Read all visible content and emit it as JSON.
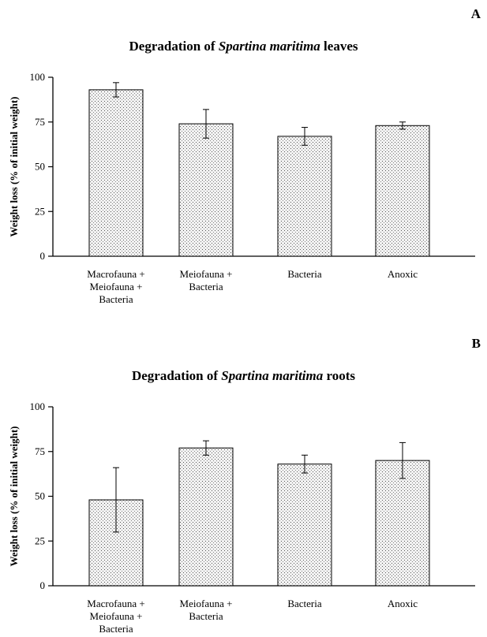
{
  "chart_data": [
    {
      "type": "bar",
      "panel_label": "A",
      "title_prefix": "Degradation of ",
      "title_italic": "Spartina maritima",
      "title_suffix": " leaves",
      "ylabel": "Weight loss (% of initial weight)",
      "xlabel": "",
      "ylim": [
        0,
        100
      ],
      "yticks": [
        0,
        25,
        50,
        75,
        100
      ],
      "categories": [
        [
          "Macrofauna +",
          "Meiofauna +",
          "Bacteria"
        ],
        [
          "Meiofauna +",
          "Bacteria"
        ],
        [
          "Bacteria"
        ],
        [
          "Anoxic"
        ]
      ],
      "values": [
        93,
        74,
        67,
        73
      ],
      "errors": [
        4,
        8,
        5,
        2
      ],
      "grid": false,
      "fill": "stippled gray"
    },
    {
      "type": "bar",
      "panel_label": "B",
      "title_prefix": "Degradation of ",
      "title_italic": "Spartina maritima",
      "title_suffix": " roots",
      "ylabel": "Weight loss (% of initial weight)",
      "xlabel": "",
      "ylim": [
        0,
        100
      ],
      "yticks": [
        0,
        25,
        50,
        75,
        100
      ],
      "categories": [
        [
          "Macrofauna +",
          "Meiofauna +",
          "Bacteria"
        ],
        [
          "Meiofauna +",
          "Bacteria"
        ],
        [
          "Bacteria"
        ],
        [
          "Anoxic"
        ]
      ],
      "values": [
        48,
        77,
        68,
        70
      ],
      "errors": [
        18,
        4,
        5,
        10
      ],
      "grid": false,
      "fill": "stippled gray"
    }
  ]
}
